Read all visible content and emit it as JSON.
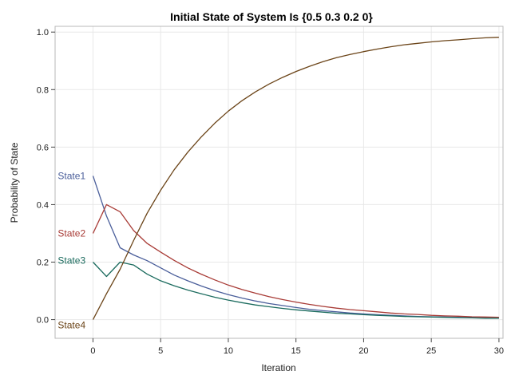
{
  "chart_data": {
    "type": "line",
    "title": "Initial State of System Is {0.5 0.3 0.2 0}",
    "xlabel": "Iteration",
    "ylabel": "Probability of State",
    "xlim": [
      -2.8,
      30.3
    ],
    "ylim": [
      -0.065,
      1.02
    ],
    "xticks": [
      0,
      5,
      10,
      15,
      20,
      25,
      30
    ],
    "yticks": [
      0.0,
      0.2,
      0.4,
      0.6,
      0.8,
      1.0
    ],
    "ytick_labels": [
      "0.0",
      "0.2",
      "0.4",
      "0.6",
      "0.8",
      "1.0"
    ],
    "grid": true,
    "legend": "inline labels at left of each series",
    "x": [
      0,
      1,
      2,
      3,
      4,
      5,
      6,
      7,
      8,
      9,
      10,
      11,
      12,
      13,
      14,
      15,
      16,
      17,
      18,
      19,
      20,
      21,
      22,
      23,
      24,
      25,
      26,
      27,
      28,
      29,
      30
    ],
    "series": [
      {
        "name": "State1",
        "color": "#4a5e9a",
        "values": [
          0.5,
          0.36,
          0.25,
          0.225,
          0.205,
          0.18,
          0.155,
          0.135,
          0.117,
          0.101,
          0.087,
          0.075,
          0.065,
          0.056,
          0.049,
          0.042,
          0.036,
          0.031,
          0.027,
          0.023,
          0.02,
          0.017,
          0.015,
          0.013,
          0.011,
          0.01,
          0.009,
          0.008,
          0.007,
          0.006,
          0.005
        ]
      },
      {
        "name": "State2",
        "color": "#a83b36",
        "values": [
          0.3,
          0.4,
          0.375,
          0.31,
          0.265,
          0.235,
          0.206,
          0.18,
          0.158,
          0.138,
          0.12,
          0.105,
          0.092,
          0.08,
          0.07,
          0.061,
          0.053,
          0.046,
          0.04,
          0.035,
          0.031,
          0.027,
          0.023,
          0.02,
          0.018,
          0.015,
          0.013,
          0.012,
          0.01,
          0.009,
          0.008
        ]
      },
      {
        "name": "State3",
        "color": "#1b6b5e",
        "values": [
          0.2,
          0.15,
          0.2,
          0.19,
          0.158,
          0.135,
          0.118,
          0.103,
          0.09,
          0.078,
          0.068,
          0.059,
          0.051,
          0.045,
          0.039,
          0.034,
          0.03,
          0.026,
          0.022,
          0.02,
          0.017,
          0.015,
          0.013,
          0.011,
          0.01,
          0.009,
          0.008,
          0.007,
          0.006,
          0.005,
          0.005
        ]
      },
      {
        "name": "State4",
        "color": "#6b4418",
        "values": [
          0.0,
          0.09,
          0.175,
          0.275,
          0.37,
          0.45,
          0.521,
          0.582,
          0.635,
          0.683,
          0.725,
          0.761,
          0.792,
          0.819,
          0.842,
          0.863,
          0.881,
          0.897,
          0.911,
          0.922,
          0.932,
          0.941,
          0.949,
          0.956,
          0.961,
          0.966,
          0.97,
          0.973,
          0.977,
          0.98,
          0.982
        ]
      }
    ]
  }
}
